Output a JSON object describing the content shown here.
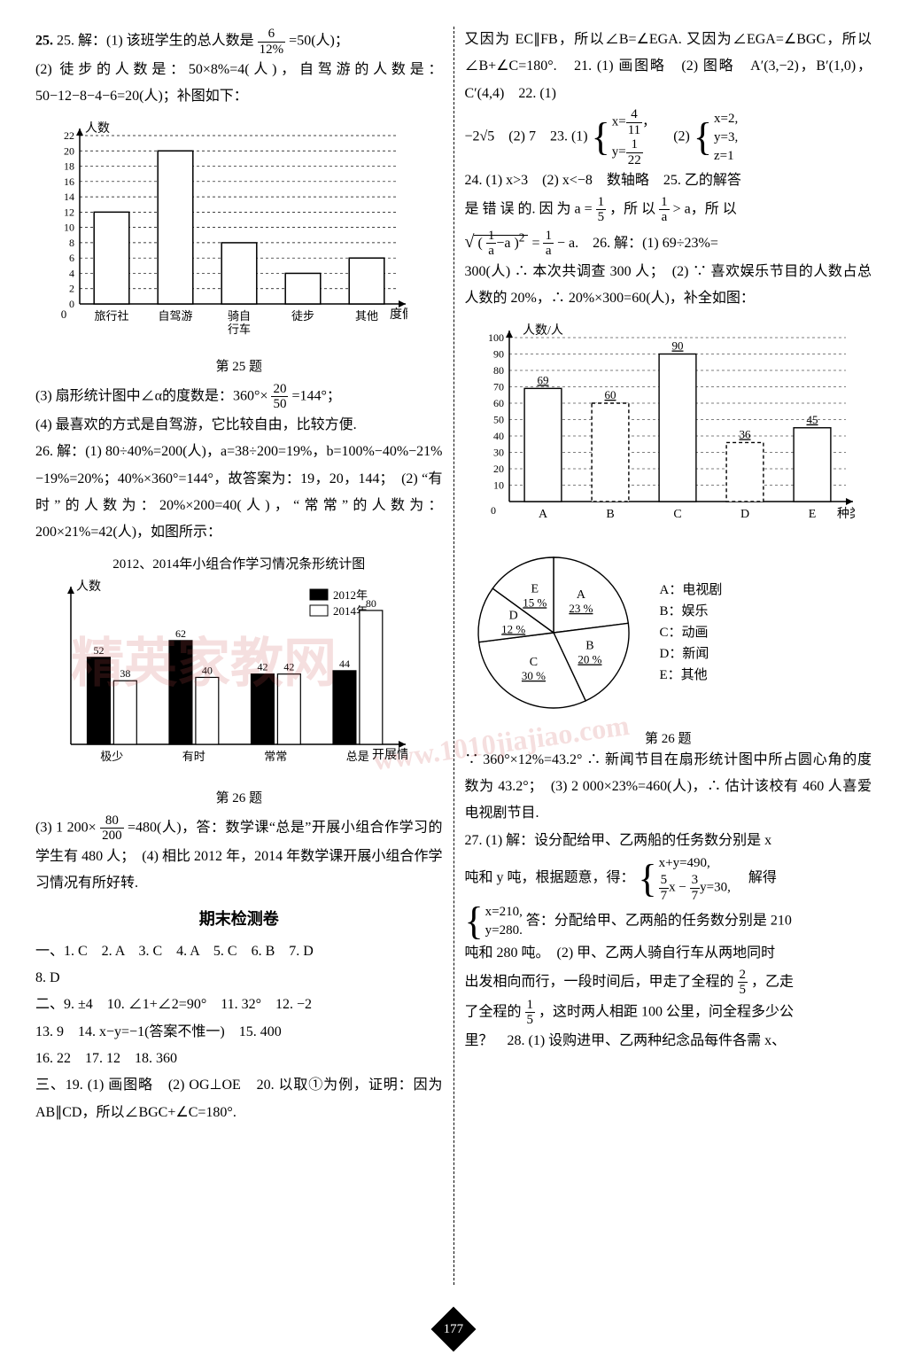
{
  "left": {
    "p25_1": "25. 解：(1) 该班学生的总人数是",
    "p25_1_frac_num": "6",
    "p25_1_frac_den": "12%",
    "p25_1_tail": "=50(人)；",
    "p25_2": "(2) 徒步的人数是：50×8%=4(人)，自驾游的人数是：50−12−8−4−6=20(人)；补图如下：",
    "chart25": {
      "type": "bar",
      "ylabel": "人数",
      "xlabel": "度假方式",
      "categories": [
        "旅行社",
        "自驾游",
        "骑自行车",
        "徒步",
        "其他"
      ],
      "values": [
        12,
        20,
        8,
        4,
        6
      ],
      "ylim": [
        0,
        22
      ],
      "ytick_step": 2,
      "bar_color": "#ffffff",
      "bar_border": "#000000",
      "grid_color": "#000000",
      "grid_dash": "3,3",
      "bar_width": 0.55
    },
    "cap25": "第 25 题",
    "p25_3a": "(3) 扇形统计图中∠α的度数是：360°×",
    "p25_3_frac_num": "20",
    "p25_3_frac_den": "50",
    "p25_3b": "=144°；",
    "p25_4": "(4) 最喜欢的方式是自驾游，它比较自由，比较方便.",
    "p26_1": "26. 解：(1) 80÷40%=200(人)，a=38÷200=19%，b=100%−40%−21%−19%=20%；40%×360°=144°，故答案为：19，20，144；　(2) “有时”的人数为：20%×200=40(人)，“常常”的人数为：200×21%=42(人)，如图所示：",
    "chart26L": {
      "type": "grouped-bar",
      "title": "2012、2014年小组合作学习情况条形统计图",
      "ylabel": "人数",
      "xlabel": "开展情况",
      "categories": [
        "极少",
        "有时",
        "常常",
        "总是"
      ],
      "series": [
        {
          "name": "2012年",
          "color": "#000000",
          "values": [
            52,
            62,
            42,
            44
          ]
        },
        {
          "name": "2014年",
          "color": "#ffffff",
          "values": [
            38,
            40,
            42,
            80
          ]
        }
      ],
      "value_labels": [
        [
          "52",
          "38"
        ],
        [
          "62",
          "40"
        ],
        [
          "42",
          "42"
        ],
        [
          "44",
          "80"
        ]
      ],
      "ylim": [
        0,
        90
      ],
      "legend_pos": "top-right",
      "bar_border": "#000000"
    },
    "cap26L": "第 26 题",
    "p26_3a": "(3) 1 200×",
    "p26_3_frac_num": "80",
    "p26_3_frac_den": "200",
    "p26_3b": "=480(人)，答：数学课“总是”开展小组合作学习的学生有 480 人；　(4) 相比 2012 年，2014 年数学课开展小组合作学习情况有所好转.",
    "final_title": "期末检测卷",
    "final_1": "一、1. C　2. A　3. C　4. A　5. C　6. B　7. D",
    "final_1b": "8. D",
    "final_2": "二、9. ±4　10. ∠1+∠2=90°　11. 32°　12. −2",
    "final_2b": "13. 9　14. x−y=−1(答案不惟一)　15. 400",
    "final_2c": "16. 22　17. 12　18. 360",
    "final_3": "三、19. (1) 画图略　(2) OG⊥OE　20. 以取①为例，证明：因为 AB∥CD，所以∠BGC+∠C=180°."
  },
  "right": {
    "p20_cont": "又因为 EC∥FB，所以∠B=∠EGA. 又因为∠EGA=∠BGC，所以∠B+∠C=180°.　21. (1) 画图略　(2) 图略　A′(3,−2)，B′(1,0)，C′(4,4)　22. (1)",
    "eq22_pre": "−2√5　(2) 7　23. (1) ",
    "eq23_1_x_num": "4",
    "eq23_1_x_den": "11",
    "eq23_1_y_num": "1",
    "eq23_1_y_den": "22",
    "eq23_mid": "　(2) ",
    "eq23_2_x": "x=2,",
    "eq23_2_y": "y=3,",
    "eq23_2_z": "z=1",
    "p24": "24. (1) x>3　(2) x<−8　数轴略　25. 乙的解答",
    "p25r_a": "是 错 误 的. 因 为 a = ",
    "p25r_frac1_num": "1",
    "p25r_frac1_den": "5",
    "p25r_b": "，所 以 ",
    "p25r_frac2_num": "1",
    "p25r_frac2_den": "a",
    "p25r_c": " > a，所 以",
    "p25r_sq_in_num": "1",
    "p25r_sq_in_den": "a",
    "p25r_sq_tail_num": "1",
    "p25r_sq_tail_den": "a",
    "p25r_sq_txt": " − a.　26. 解：(1) 69÷23%=",
    "p26r_1": "300(人) ∴ 本次共调查 300 人；　(2) ∵ 喜欢娱乐节目的人数占总人数的 20%，∴ 20%×300=60(人)，补全如图：",
    "chart26R": {
      "type": "bar",
      "ylabel": "人数/人",
      "xlabel": "种类",
      "categories": [
        "A",
        "B",
        "C",
        "D",
        "E"
      ],
      "values": [
        69,
        60,
        90,
        36,
        45
      ],
      "value_labels": [
        "69",
        "60",
        "90",
        "36",
        "45"
      ],
      "ylim": [
        0,
        100
      ],
      "ytick_step": 10,
      "bar_color": "#ffffff",
      "bar_border": "#000000",
      "grid_dash": "3,3",
      "show_grid": true,
      "dashed_bars": [
        "B",
        "D"
      ]
    },
    "pie26": {
      "type": "pie",
      "slices": [
        {
          "label": "A",
          "pct": "23 %",
          "angle": 82.8
        },
        {
          "label": "B",
          "pct": "20 %",
          "angle": 72
        },
        {
          "label": "C",
          "pct": "30 %",
          "angle": 108
        },
        {
          "label": "D",
          "pct": "12 %",
          "angle": 43.2
        },
        {
          "label": "E",
          "pct": "15 %",
          "angle": 54
        }
      ],
      "fill": "#ffffff",
      "stroke": "#000000",
      "legend": [
        "A：电视剧",
        "B：娱乐",
        "C：动画",
        "D：新闻",
        "E：其他"
      ]
    },
    "cap26R": "第 26 题",
    "p26r_2a": "∵ 360°×12%=43.2° ∴ 新闻节目在扇形统计图中所占圆心角的度数为 43.2°；　(3) 2 000×23%=460(人)，∴ 估计该校有 460 人喜爱电视剧节目.",
    "p27_a": "27. (1) 解：设分配给甲、乙两船的任务数分别是 x",
    "p27_b": "吨和 y 吨，根据题意，得：",
    "eq27_1": "x+y=490,",
    "eq27_2_a_num": "5",
    "eq27_2_a_den": "7",
    "eq27_2_b_num": "3",
    "eq27_2_b_den": "7",
    "eq27_2_tail": "x − y=30,",
    "p27_c": "　解得",
    "eq27s_1": "x=210,",
    "eq27s_2": "y=280.",
    "p27_d": "答：分配给甲、乙两船的任务数分别是 210",
    "p27_e": "吨和 280 吨。　(2) 甲、乙两人骑自行车从两地同时",
    "p27_f_a": "出发相向而行，一段时间后，甲走了全程的",
    "p27_f_frac_num": "2",
    "p27_f_frac_den": "5",
    "p27_f_b": "，乙走",
    "p27_g_a": "了全程的",
    "p27_g_frac_num": "1",
    "p27_g_frac_den": "5",
    "p27_g_b": "，这时两人相距 100 公里，问全程多少公",
    "p27_h": "里？　28. (1) 设购进甲、乙两种纪念品每件各需 x、"
  },
  "page_number": "177",
  "watermarks": {
    "w1": "精英家教网",
    "w2": "www.1010jiajiao.com"
  }
}
